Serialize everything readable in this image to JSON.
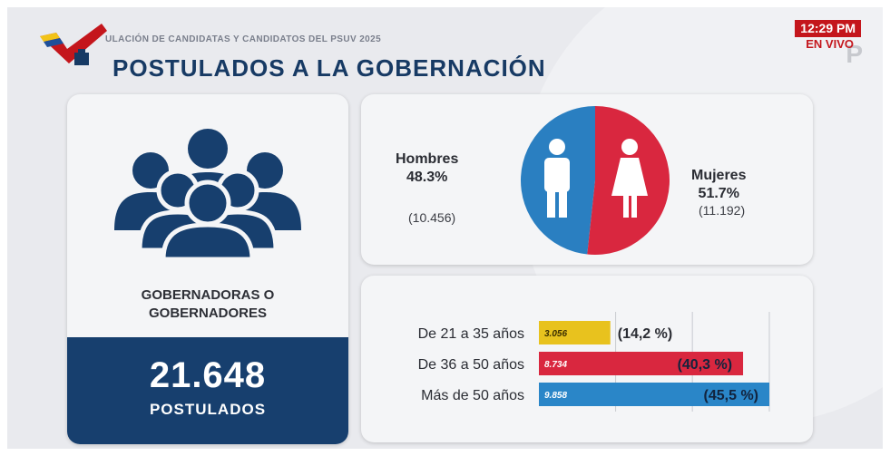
{
  "header": {
    "subtitle": "ULACIÓN DE CANDIDATAS Y CANDIDATOS DEL PSUV 2025",
    "title": "POSTULADOS A LA GOBERNACIÓN",
    "clock": "12:29 PM",
    "live": "EN VIVO",
    "watermark": "P"
  },
  "total_panel": {
    "label_line1": "GOBERNADORAS O",
    "label_line2": "GOBERNADORES",
    "total": "21.648",
    "total_label": "POSTULADOS"
  },
  "gender_panel": {
    "men_label": "Hombres",
    "men_pct": "48.3%",
    "men_count": "(10.456)",
    "women_label": "Mujeres",
    "women_pct": "51.7%",
    "women_count": "(11.192)",
    "men_color": "#2a7fc1",
    "women_color": "#d9273f",
    "icons": [
      "man-icon",
      "woman-icon"
    ]
  },
  "chart_data": [
    {
      "type": "pie",
      "title": "",
      "categories": [
        "Hombres",
        "Mujeres"
      ],
      "values": [
        48.3,
        51.7
      ],
      "counts": [
        10456,
        11192
      ],
      "colors": [
        "#2a7fc1",
        "#d9273f"
      ]
    },
    {
      "type": "bar",
      "orientation": "horizontal",
      "title": "",
      "categories": [
        "De 21 a 35 años",
        "De 36 a 50 años",
        "Más de 50 años"
      ],
      "values": [
        3056,
        8734,
        9858
      ],
      "value_labels": [
        "3.056",
        "8.734",
        "9.858"
      ],
      "percent_labels": [
        "(14,2 %)",
        "(40,3 %)",
        "(45,5 %)"
      ],
      "colors": [
        "#e8c21e",
        "#d9273f",
        "#2a86c8"
      ],
      "xlim": [
        0,
        9858
      ],
      "grid": true
    }
  ]
}
